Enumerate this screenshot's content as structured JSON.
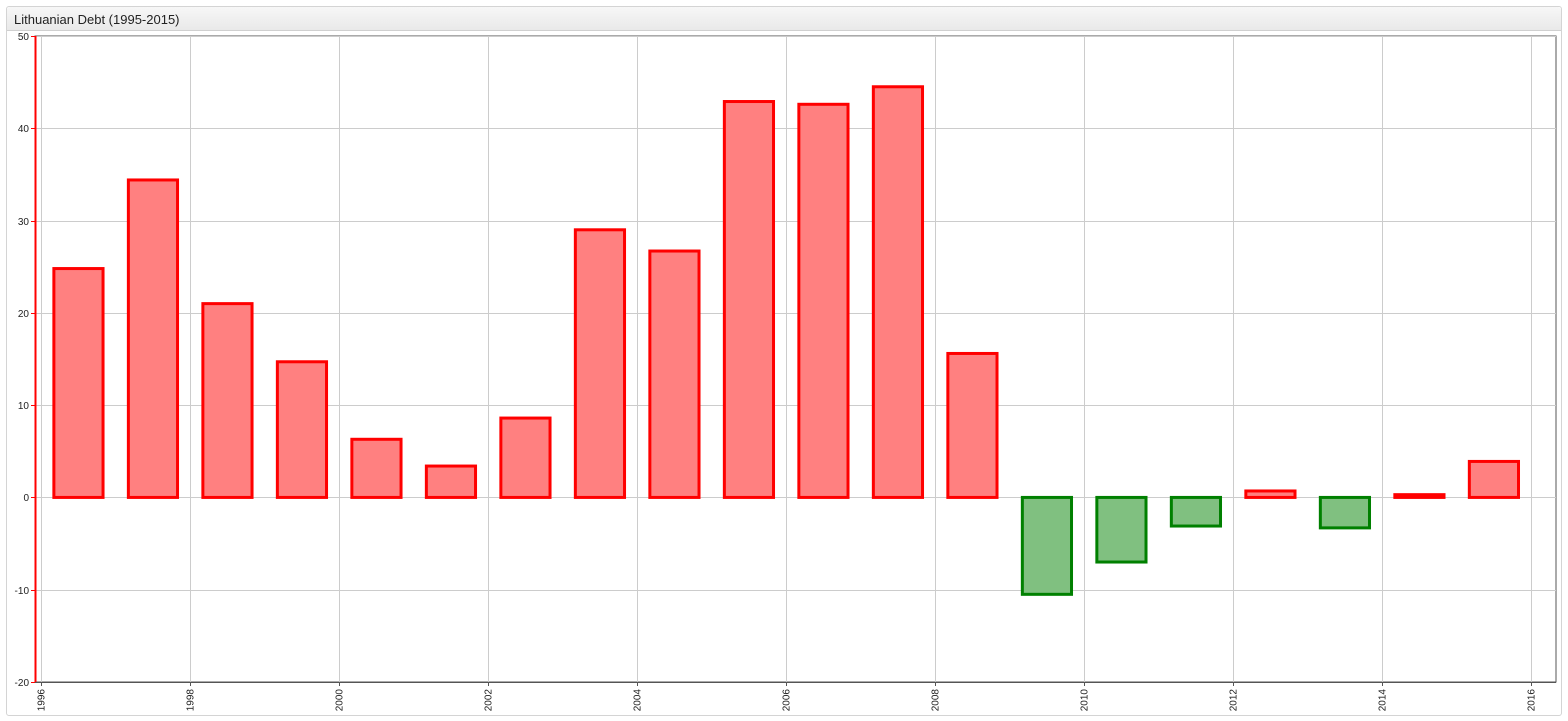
{
  "widget": {
    "title": "Lithuanian Debt (1995-2015)"
  },
  "chart_data": {
    "type": "bar",
    "title": "Lithuanian Debt (1995-2015)",
    "xlabel": "",
    "ylabel": "",
    "x_axis": {
      "type": "time",
      "range": [
        "1995-12",
        "2016-05"
      ],
      "tick_labels": [
        "1996",
        "1998",
        "2000",
        "2002",
        "2004",
        "2006",
        "2008",
        "2010",
        "2012",
        "2014",
        "2016"
      ]
    },
    "y_axis": {
      "range": [
        -20,
        50
      ],
      "tick_labels": [
        "50",
        "40",
        "30",
        "20",
        "10",
        "0",
        "-10",
        "-20"
      ]
    },
    "grid": true,
    "legend": "none",
    "x": [
      1996,
      1997,
      1998,
      1999,
      2000,
      2001,
      2002,
      2003,
      2004,
      2005,
      2006,
      2007,
      2008,
      2009,
      2010,
      2011,
      2012,
      2013,
      2014,
      2015
    ],
    "values": [
      24.8,
      34.4,
      21.0,
      14.7,
      6.3,
      3.4,
      8.6,
      29.0,
      26.7,
      42.9,
      42.6,
      44.5,
      15.6,
      -10.5,
      -7.0,
      -3.1,
      0.7,
      -3.3,
      0.3,
      3.9
    ],
    "colors": {
      "positive_fill": "#ff8080",
      "positive_stroke": "#ff0000",
      "negative_fill": "#80c080",
      "negative_stroke": "#008000",
      "axis": "#ff0000",
      "grid": "#cccccc"
    }
  }
}
